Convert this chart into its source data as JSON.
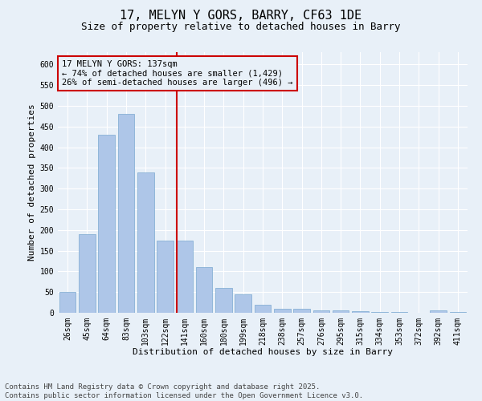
{
  "title": "17, MELYN Y GORS, BARRY, CF63 1DE",
  "subtitle": "Size of property relative to detached houses in Barry",
  "xlabel": "Distribution of detached houses by size in Barry",
  "ylabel": "Number of detached properties",
  "categories": [
    "26sqm",
    "45sqm",
    "64sqm",
    "83sqm",
    "103sqm",
    "122sqm",
    "141sqm",
    "160sqm",
    "180sqm",
    "199sqm",
    "218sqm",
    "238sqm",
    "257sqm",
    "276sqm",
    "295sqm",
    "315sqm",
    "334sqm",
    "353sqm",
    "372sqm",
    "392sqm",
    "411sqm"
  ],
  "values": [
    50,
    190,
    430,
    480,
    340,
    175,
    175,
    110,
    60,
    45,
    20,
    10,
    10,
    5,
    5,
    3,
    1,
    1,
    0,
    5,
    1
  ],
  "bar_color": "#aec6e8",
  "bar_edge_color": "#7aa8d0",
  "highlight_color": "#cc0000",
  "vline_index": 6,
  "annotation_text": "17 MELYN Y GORS: 137sqm\n← 74% of detached houses are smaller (1,429)\n26% of semi-detached houses are larger (496) →",
  "annotation_box_color": "#cc0000",
  "ylim": [
    0,
    630
  ],
  "yticks": [
    0,
    50,
    100,
    150,
    200,
    250,
    300,
    350,
    400,
    450,
    500,
    550,
    600
  ],
  "footer": "Contains HM Land Registry data © Crown copyright and database right 2025.\nContains public sector information licensed under the Open Government Licence v3.0.",
  "bg_color": "#e8f0f8",
  "grid_color": "#ffffff",
  "title_fontsize": 11,
  "subtitle_fontsize": 9,
  "axis_label_fontsize": 8,
  "tick_fontsize": 7,
  "annotation_fontsize": 7.5,
  "footer_fontsize": 6.5
}
